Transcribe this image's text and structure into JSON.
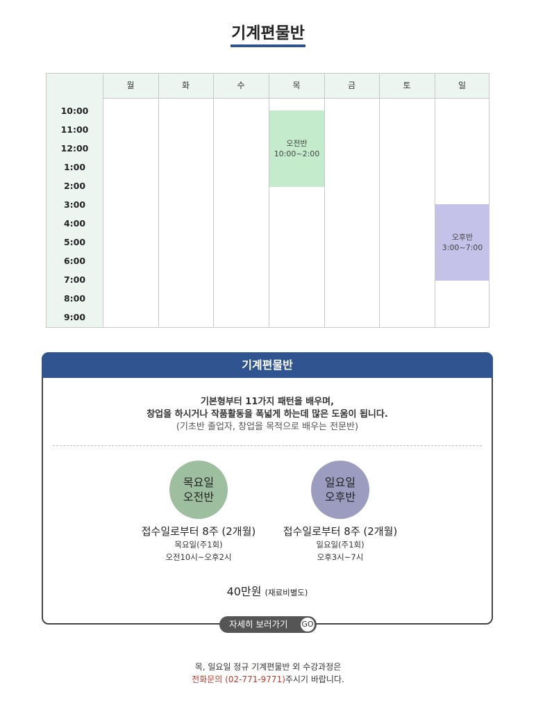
{
  "header": {
    "title": "기계편물반"
  },
  "timetable": {
    "days": [
      "월",
      "화",
      "수",
      "목",
      "금",
      "토",
      "일"
    ],
    "times": [
      "10:00",
      "11:00",
      "12:00",
      "1:00",
      "2:00",
      "3:00",
      "4:00",
      "5:00",
      "6:00",
      "7:00",
      "8:00",
      "9:00"
    ],
    "classes": [
      {
        "label": "오전반",
        "time": "10:00~2:00"
      },
      {
        "label": "오후반",
        "time": "3:00~7:00"
      }
    ]
  },
  "course": {
    "title": "기계편물반",
    "description": [
      "기본형부터 11가지 패턴을 배우며,",
      "창업을 하시거나 작품활동을 폭넓게 하는데 많은 도움이 됩니다.",
      "(기초반 졸업자, 창업을 목적으로 배우는 전문반)"
    ],
    "sessions": [
      {
        "badge": [
          "목요일",
          "오전반"
        ],
        "duration": "접수일로부터 8주 (2개월)",
        "frequency": "목요일(주1회)",
        "hours": "오전10시~오후2시"
      },
      {
        "badge": [
          "일요일",
          "오후반"
        ],
        "duration": "접수일로부터 8주 (2개월)",
        "frequency": "일요일(주1회)",
        "hours": "오후3시~7시"
      }
    ],
    "price": "40만원",
    "price_note": "(재료비별도)",
    "button": "자세히 보러가기",
    "button_icon": "GO"
  },
  "footer": {
    "line1": "목, 일요일 정규 기계편물반 외 수강과정은",
    "phone": "전화문의 (02-771-9771)",
    "line2_rest": "주시기 바랍니다."
  }
}
